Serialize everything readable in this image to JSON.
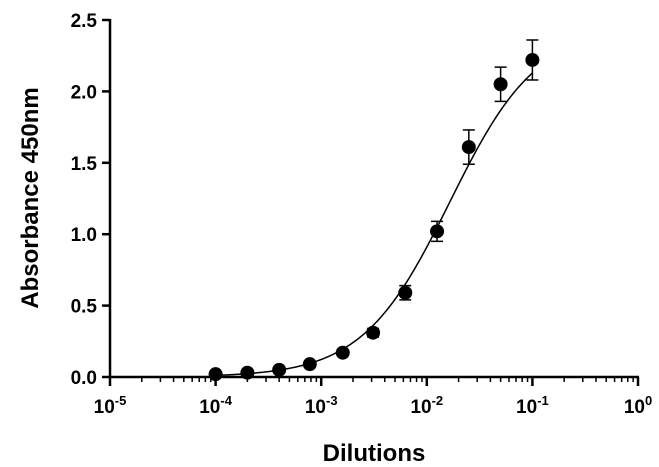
{
  "chart_data": {
    "type": "scatter",
    "title": "",
    "xlabel": "Dilutions",
    "ylabel": "Absorbance 450nm",
    "x_scale": "log10",
    "xlim": [
      1e-05,
      1
    ],
    "ylim": [
      0,
      2.5
    ],
    "grid": false,
    "legend": "none",
    "x_ticks": [
      {
        "base": "10",
        "exp": "-5",
        "value": 1e-05
      },
      {
        "base": "10",
        "exp": "-4",
        "value": 0.0001
      },
      {
        "base": "10",
        "exp": "-3",
        "value": 0.001
      },
      {
        "base": "10",
        "exp": "-2",
        "value": 0.01
      },
      {
        "base": "10",
        "exp": "-1",
        "value": 0.1
      },
      {
        "base": "10",
        "exp": "0",
        "value": 1
      }
    ],
    "y_ticks": [
      {
        "label": "0.0",
        "value": 0
      },
      {
        "label": "0.5",
        "value": 0.5
      },
      {
        "label": "1.0",
        "value": 1.0
      },
      {
        "label": "1.5",
        "value": 1.5
      },
      {
        "label": "2.0",
        "value": 2.0
      },
      {
        "label": "2.5",
        "value": 2.5
      }
    ],
    "series": [
      {
        "marker_color": "#000000",
        "points": [
          {
            "x": 0.0001,
            "y": 0.02,
            "err": 0.01
          },
          {
            "x": 0.0002,
            "y": 0.03,
            "err": 0.01
          },
          {
            "x": 0.0004,
            "y": 0.05,
            "err": 0.01
          },
          {
            "x": 0.00078,
            "y": 0.09,
            "err": 0.01
          },
          {
            "x": 0.0016,
            "y": 0.17,
            "err": 0.01
          },
          {
            "x": 0.0031,
            "y": 0.31,
            "err": 0.03
          },
          {
            "x": 0.00625,
            "y": 0.59,
            "err": 0.05
          },
          {
            "x": 0.0125,
            "y": 1.02,
            "err": 0.07
          },
          {
            "x": 0.025,
            "y": 1.61,
            "err": 0.12
          },
          {
            "x": 0.05,
            "y": 2.05,
            "err": 0.12
          },
          {
            "x": 0.1,
            "y": 2.22,
            "err": 0.14
          }
        ],
        "fit": {
          "model": "4PL",
          "bottom": 0.0,
          "top": 2.45,
          "ec50": 0.0165,
          "hill": 1.05
        }
      }
    ]
  }
}
